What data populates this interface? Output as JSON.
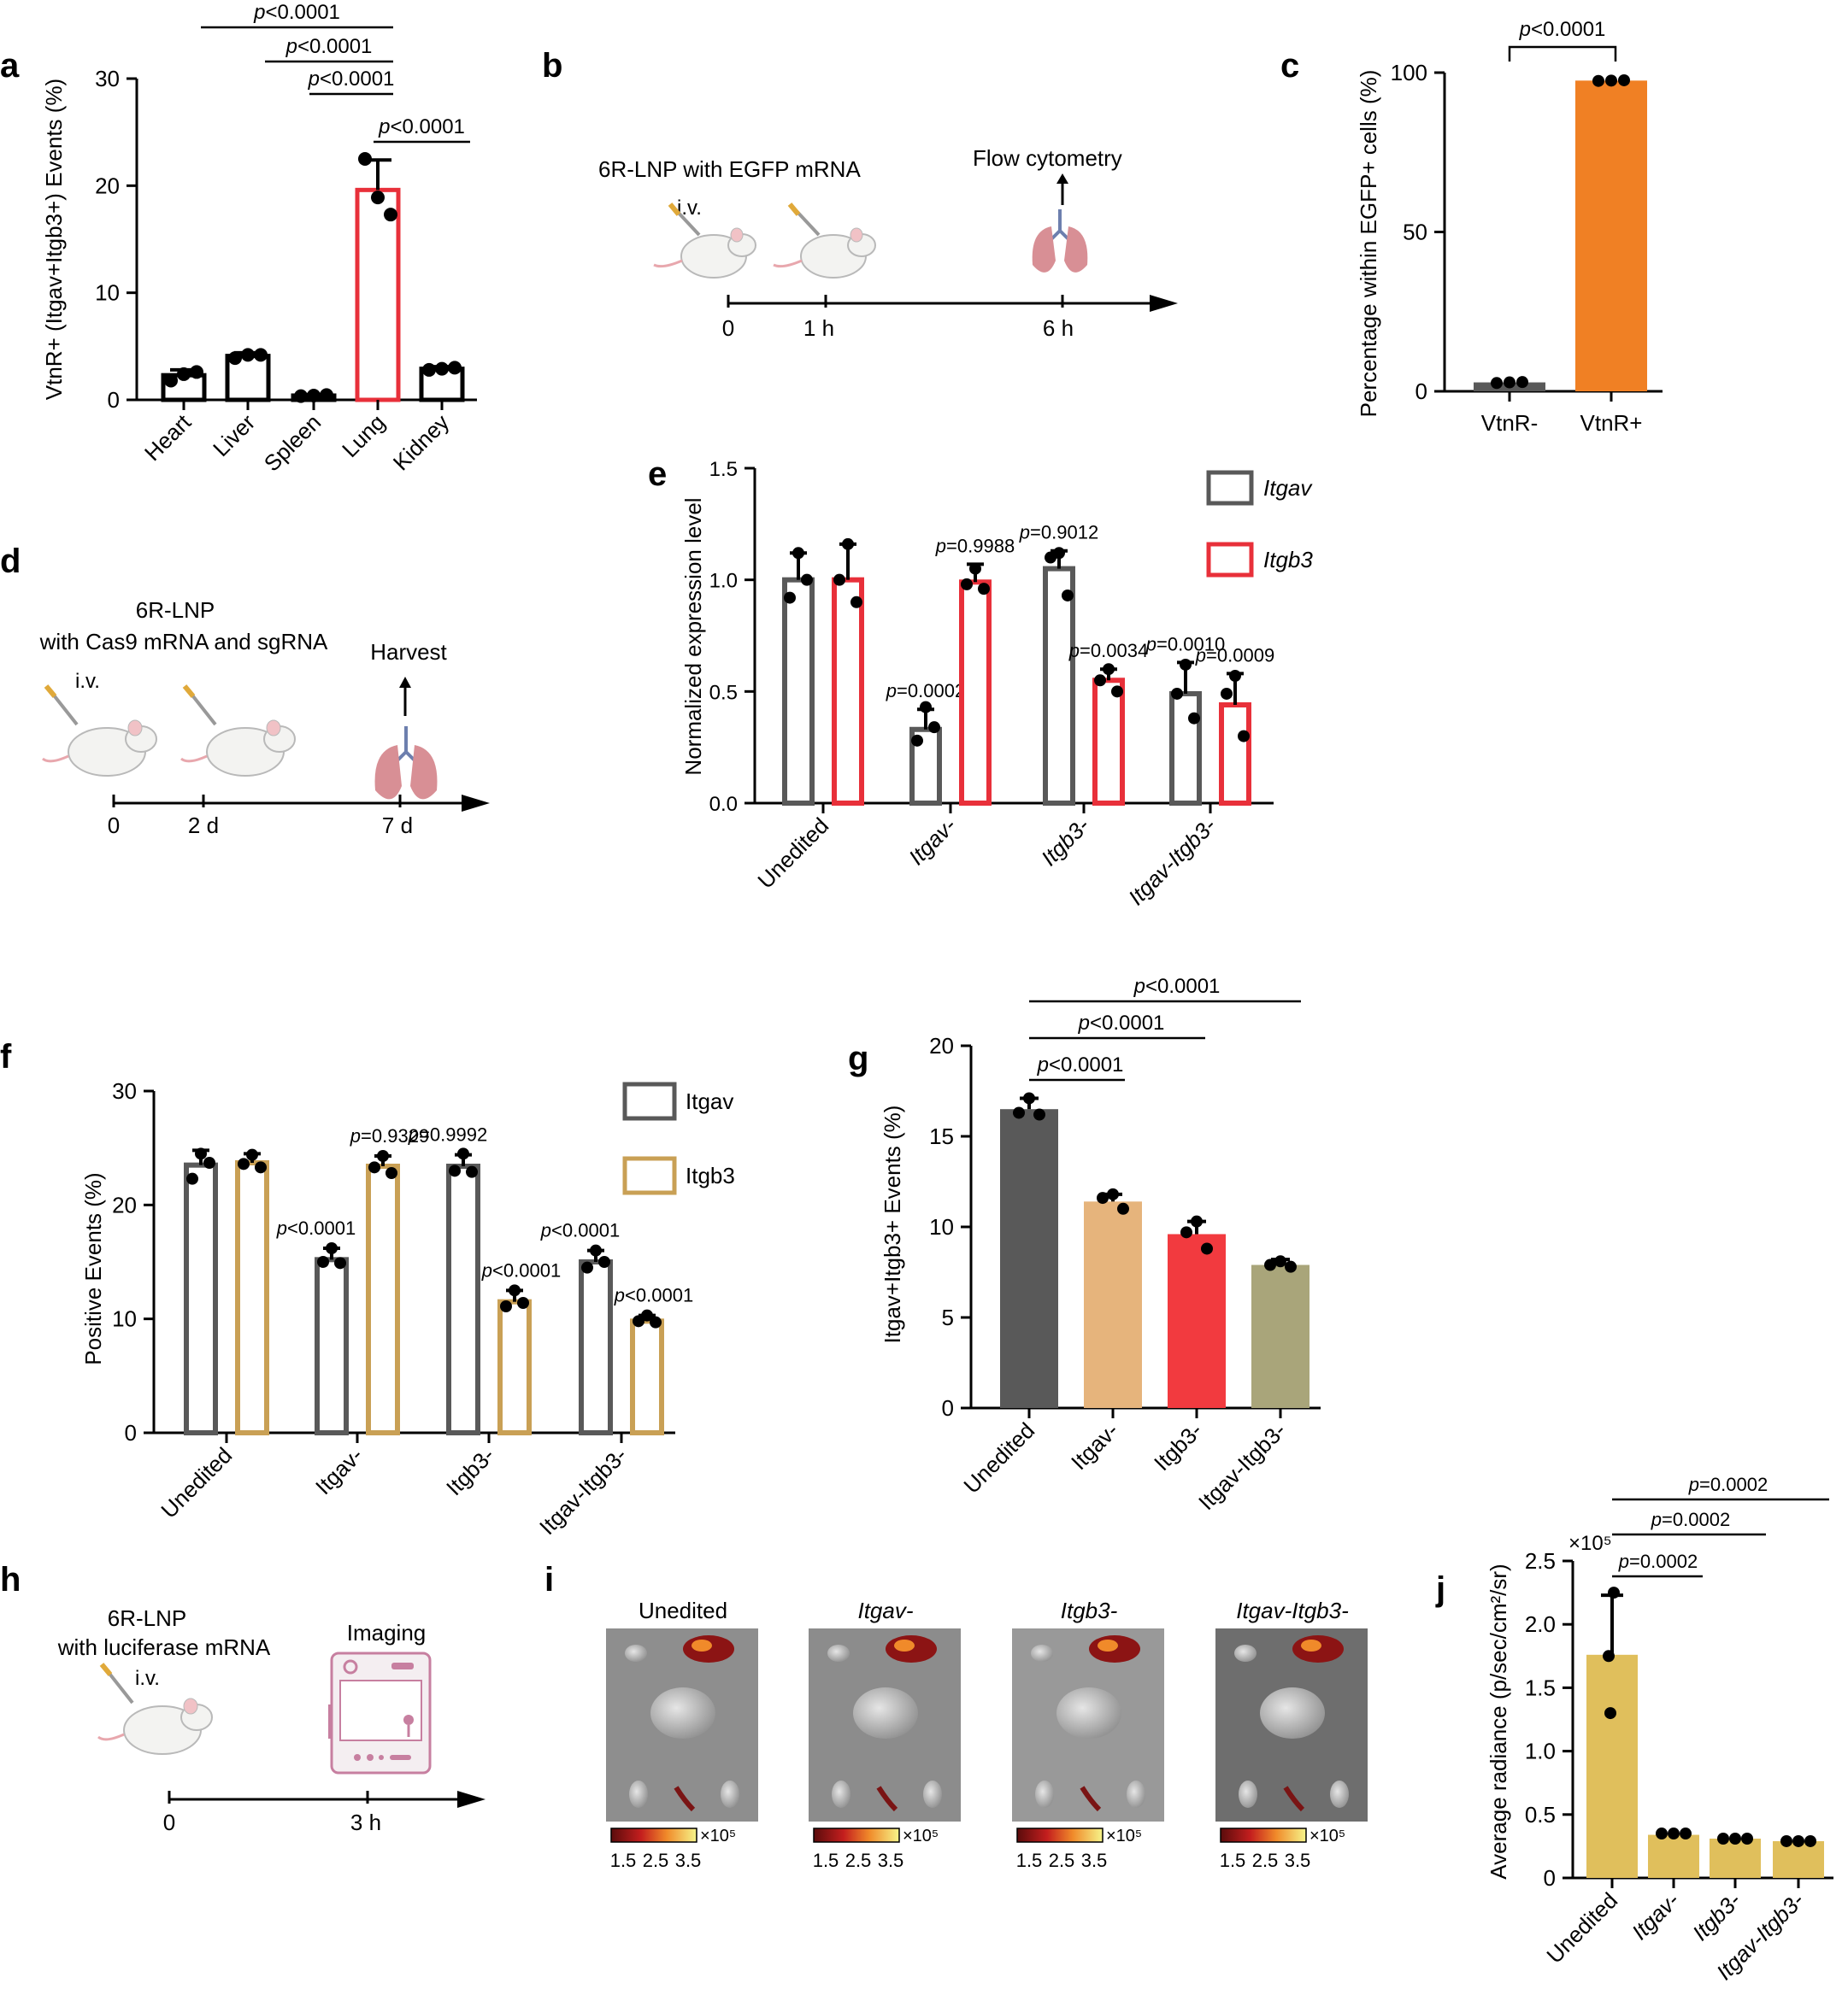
{
  "panel_labels": {
    "a": "a",
    "b": "b",
    "c": "c",
    "d": "d",
    "e": "e",
    "f": "f",
    "g": "g",
    "h": "h",
    "i": "i",
    "j": "j"
  },
  "colors": {
    "black": "#000000",
    "red": "#e8303a",
    "gray": "#595959",
    "orange": "#f08024",
    "gold": "#c9a055",
    "tan": "#e6b47c",
    "red2": "#f23a3f",
    "olive": "#a9a57a",
    "yellow": "#e0bf5c",
    "purple": "#c77fa0"
  },
  "schematics": {
    "b": {
      "agent": "6R-LNP with EGFP mRNA",
      "route": "i.v.",
      "readout": "Flow cytometry",
      "t0": "0",
      "t1": "1 h",
      "t2": "6 h"
    },
    "d": {
      "agent1": "6R-LNP",
      "agent2": "with Cas9 mRNA and sgRNA",
      "route": "i.v.",
      "readout": "Harvest",
      "t0": "0",
      "t1": "2 d",
      "t2": "7 d"
    },
    "h": {
      "agent1": "6R-LNP",
      "agent2": "with luciferase mRNA",
      "route": "i.v.",
      "readout": "Imaging",
      "t0": "0",
      "t1": "3 h"
    }
  },
  "imaging": {
    "titles": [
      "Unedited",
      "Itgav-",
      "Itgb3-",
      "Itgav-Itgb3-"
    ],
    "scale_ticks": [
      "1.5",
      "2.5",
      "3.5"
    ],
    "scale_unit": "×10⁵"
  },
  "chart_data": [
    {
      "id": "a",
      "type": "bar",
      "categories": [
        "Heart",
        "Liver",
        "Spleen",
        "Lung",
        "Kidney"
      ],
      "values": [
        2.3,
        4.1,
        0.4,
        19.6,
        2.9
      ],
      "errors": [
        0.5,
        0.3,
        0.1,
        2.8,
        0.2
      ],
      "points": [
        [
          1.8,
          2.4,
          2.6
        ],
        [
          3.9,
          4.2,
          4.2
        ],
        [
          0.35,
          0.4,
          0.45
        ],
        [
          22.5,
          18.9,
          17.3
        ],
        [
          2.8,
          2.9,
          3.0
        ]
      ],
      "highlight": 3,
      "ylabel": "VtnR+ (Itgav+Itgb3+) Events (%)",
      "ylim": [
        0,
        30
      ],
      "yticks": [
        "0",
        "10",
        "20",
        "30"
      ],
      "comparisons": [
        {
          "from": 1,
          "to": 3,
          "label": "p<0.0001"
        },
        {
          "from": 2,
          "to": 3,
          "label": "p<0.0001"
        },
        {
          "from": 2.6,
          "to": 3,
          "label": "p<0.0001"
        },
        {
          "from": 3,
          "to": 4,
          "label": "p<0.0001"
        }
      ]
    },
    {
      "id": "c",
      "type": "bar",
      "categories": [
        "VtnR-",
        "VtnR+"
      ],
      "values": [
        2.8,
        97.5
      ],
      "points": [
        [
          2.6,
          2.8,
          2.9
        ],
        [
          97.4,
          97.5,
          97.6
        ]
      ],
      "ylabel": "Percentage within EGFP+ cells  (%)",
      "ylim": [
        0,
        100
      ],
      "yticks": [
        "0",
        "50",
        "100"
      ],
      "comparisons": [
        {
          "from": 0,
          "to": 1,
          "label": "p<0.0001"
        }
      ]
    },
    {
      "id": "e",
      "type": "bar",
      "categories": [
        "Unedited",
        "Itgav-",
        "Itgb3-",
        "Itgav-Itgb3-"
      ],
      "series": [
        {
          "name": "Itgav",
          "values": [
            1.0,
            0.33,
            1.05,
            0.49
          ],
          "errors": [
            0.12,
            0.09,
            0.08,
            0.14
          ],
          "points": [
            [
              1.12,
              0.92,
              1.0
            ],
            [
              0.43,
              0.28,
              0.34
            ],
            [
              1.12,
              1.1,
              0.93
            ],
            [
              0.62,
              0.49,
              0.38
            ]
          ],
          "labels": [
            "",
            "p=0.0002",
            "p=0.9012",
            "p=0.0010"
          ]
        },
        {
          "name": "Itgb3",
          "values": [
            1.0,
            0.99,
            0.55,
            0.44
          ],
          "errors": [
            0.16,
            0.08,
            0.05,
            0.14
          ],
          "points": [
            [
              1.16,
              1.0,
              0.9
            ],
            [
              1.05,
              0.98,
              0.96
            ],
            [
              0.6,
              0.55,
              0.5
            ],
            [
              0.57,
              0.49,
              0.3
            ]
          ],
          "labels": [
            "",
            "p=0.9988",
            "p=0.0034",
            "p=0.0009"
          ]
        }
      ],
      "ylabel": "Normalized  expression level",
      "ylim": [
        0,
        1.5
      ],
      "yticks": [
        "0.0",
        "0.5",
        "1.0",
        "1.5"
      ]
    },
    {
      "id": "f",
      "type": "bar",
      "categories": [
        "Unedited",
        "Itgav-",
        "Itgb3-",
        "Itgav-Itgb3-"
      ],
      "series": [
        {
          "name": "Itgav",
          "values": [
            23.5,
            15.2,
            23.4,
            15.0
          ],
          "errors": [
            1.3,
            1.0,
            1.0,
            1.0
          ],
          "points": [
            [
              24.5,
              22.3,
              23.7
            ],
            [
              16.2,
              15.0,
              14.9
            ],
            [
              24.5,
              23.0,
              22.9
            ],
            [
              16.0,
              14.5,
              15.0
            ]
          ],
          "labels": [
            "",
            "p<0.0001",
            "p=0.9992",
            "p<0.0001"
          ]
        },
        {
          "name": "Itgb3",
          "values": [
            23.7,
            23.4,
            11.5,
            9.8
          ],
          "errors": [
            0.8,
            0.9,
            1.0,
            0.5
          ],
          "points": [
            [
              24.4,
              23.6,
              23.3
            ],
            [
              24.3,
              23.3,
              22.8
            ],
            [
              12.5,
              11.1,
              11.4
            ],
            [
              10.3,
              9.8,
              9.7
            ]
          ],
          "labels": [
            "",
            "p=0.9329",
            "p<0.0001",
            "p<0.0001"
          ]
        }
      ],
      "ylabel": "Positive Events (%)",
      "ylim": [
        0,
        30
      ],
      "yticks": [
        "0",
        "10",
        "20",
        "30"
      ]
    },
    {
      "id": "g",
      "type": "bar",
      "categories": [
        "Unedited",
        "Itgav-",
        "Itgb3-",
        "Itgav-Itgb3-"
      ],
      "values": [
        16.5,
        11.4,
        9.6,
        7.9
      ],
      "errors": [
        0.6,
        0.4,
        0.7,
        0.3
      ],
      "points": [
        [
          17.1,
          16.3,
          16.2
        ],
        [
          11.8,
          11.6,
          11.0
        ],
        [
          10.3,
          9.7,
          8.8
        ],
        [
          8.1,
          7.9,
          7.8
        ]
      ],
      "ylabel": "Itgav+Itgb3+ Events (%)",
      "ylim": [
        0,
        20
      ],
      "yticks": [
        "0",
        "5",
        "10",
        "15",
        "20"
      ],
      "comparisons": [
        {
          "from": 0,
          "to": 1,
          "label": "p<0.0001"
        },
        {
          "from": 0,
          "to": 2,
          "label": "p<0.0001"
        },
        {
          "from": 0,
          "to": 3,
          "label": "p<0.0001"
        }
      ]
    },
    {
      "id": "j",
      "type": "bar",
      "categories": [
        "Unedited",
        "Itgav-",
        "Itgb3-",
        "Itgav-Itgb3-"
      ],
      "values": [
        1.76,
        0.34,
        0.31,
        0.29
      ],
      "errors": [
        0.47,
        0.02,
        0.02,
        0.02
      ],
      "points": [
        [
          2.25,
          1.75,
          1.3
        ],
        [
          0.35,
          0.35,
          0.35
        ],
        [
          0.31,
          0.31,
          0.31
        ],
        [
          0.29,
          0.29,
          0.29
        ]
      ],
      "ylabel": "Average radiance (p/sec/cm²/sr)",
      "yunit": "×10⁵",
      "ylim": [
        0,
        2.5
      ],
      "yticks": [
        "0",
        "0.5",
        "1.0",
        "1.5",
        "2.0",
        "2.5"
      ],
      "comparisons": [
        {
          "from": 0,
          "to": 1,
          "label": "p=0.0002"
        },
        {
          "from": 0,
          "to": 2,
          "label": "p=0.0002"
        },
        {
          "from": 0,
          "to": 3,
          "label": "p=0.0002"
        }
      ]
    }
  ]
}
